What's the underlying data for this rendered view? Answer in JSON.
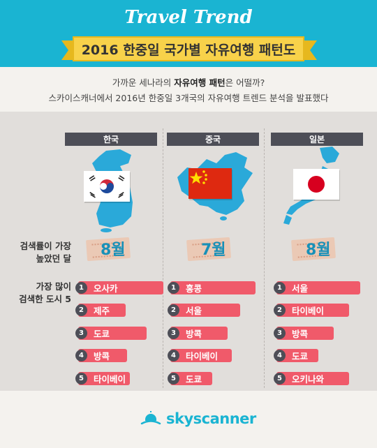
{
  "header": {
    "trend_title": "Travel Trend",
    "title": "2016 한중일 국가별 자유여행 패턴도"
  },
  "intro": {
    "line1_pre": "가까운 세나라의 ",
    "line1_highlight": "자유여행 패턴",
    "line1_post": "은 어떨까?",
    "line2": "스카이스캐너에서 2016년 한중일 3개국의 자유여행 트렌드 분석을 발표했다"
  },
  "row_labels": {
    "peak_month_line1": "검색률이 가장",
    "peak_month_line2": "높았던 달",
    "top_cities_line1": "가장 많이",
    "top_cities_line2": "검색한 도시 5"
  },
  "countries": [
    {
      "name": "한국",
      "peak_month": "8월",
      "flag_icon": "korea-flag-icon",
      "cities": [
        {
          "rank": "1",
          "name": "오사카"
        },
        {
          "rank": "2",
          "name": "제주"
        },
        {
          "rank": "3",
          "name": "도쿄"
        },
        {
          "rank": "4",
          "name": "방콕"
        },
        {
          "rank": "5",
          "name": "타이베이"
        }
      ]
    },
    {
      "name": "중국",
      "peak_month": "7월",
      "flag_icon": "china-flag-icon",
      "cities": [
        {
          "rank": "1",
          "name": "홍콩"
        },
        {
          "rank": "2",
          "name": "서울"
        },
        {
          "rank": "3",
          "name": "방콕"
        },
        {
          "rank": "4",
          "name": "타이베이"
        },
        {
          "rank": "5",
          "name": "도쿄"
        }
      ]
    },
    {
      "name": "일본",
      "peak_month": "8월",
      "flag_icon": "japan-flag-icon",
      "cities": [
        {
          "rank": "1",
          "name": "서울"
        },
        {
          "rank": "2",
          "name": "타이베이"
        },
        {
          "rank": "3",
          "name": "방콕"
        },
        {
          "rank": "4",
          "name": "도쿄"
        },
        {
          "rank": "5",
          "name": "오키나와"
        }
      ]
    }
  ],
  "footer": {
    "logo_text": "skyscanner",
    "logo_icon": "skyscanner-cloud-icon"
  },
  "colors": {
    "header_bg": "#1ab4d2",
    "banner": "#f8d24a",
    "city_bar": "#f05a6a",
    "tab": "#4d4e57",
    "month": "#1890b8",
    "map": "#2aa9d9"
  }
}
